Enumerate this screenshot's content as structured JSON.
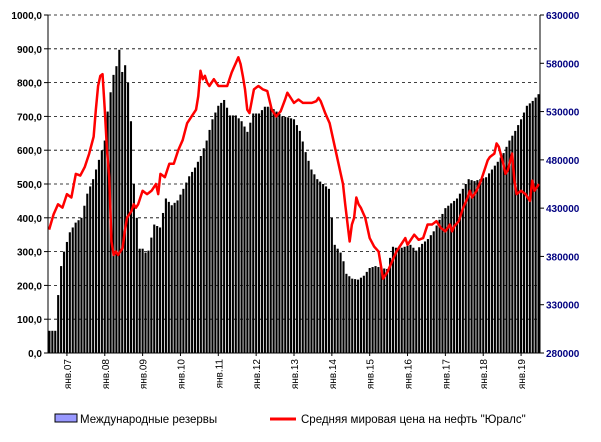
{
  "chart_data": {
    "type": "bar",
    "legend": {
      "placement": "bottom",
      "bars_label": "Международные резервы",
      "line_label": "Средняя мировая цена на нефть \"Юралс\""
    },
    "colors": {
      "bars_fill": "#000000",
      "bars_legend_fill": "#9999FF",
      "line": "#FF0000",
      "right_axis_text": "#000080",
      "gridline": "#000000"
    },
    "grid": "horizontal dashed",
    "x_tick_labels": [
      "янв.07",
      "янв.08",
      "янв.09",
      "янв.10",
      "янв.11",
      "янв.12",
      "янв.13",
      "янв.14",
      "янв.15",
      "янв.16",
      "янв.17",
      "янв.18",
      "янв.19"
    ],
    "y_left": {
      "ticks": [
        "0,0",
        "100,0",
        "200,0",
        "300,0",
        "400,0",
        "500,0",
        "600,0",
        "700,0",
        "800,0",
        "900,0",
        "1000,0"
      ],
      "ylim": [
        0,
        1000
      ]
    },
    "y_right": {
      "ticks": [
        "280000",
        "330000",
        "380000",
        "430000",
        "480000",
        "530000",
        "580000",
        "630000"
      ],
      "ylim": [
        280000,
        630000
      ]
    },
    "series": [
      {
        "axis": "right",
        "kind": "bar",
        "anchors": [
          [
            0,
            303000
          ],
          [
            2,
            303000
          ],
          [
            3,
            340000
          ],
          [
            4,
            370000
          ],
          [
            5,
            385000
          ],
          [
            7,
            405000
          ],
          [
            9,
            415000
          ],
          [
            11,
            420000
          ],
          [
            13,
            445000
          ],
          [
            15,
            460000
          ],
          [
            17,
            480000
          ],
          [
            19,
            500000
          ],
          [
            20,
            530000
          ],
          [
            21,
            550000
          ],
          [
            22,
            568000
          ],
          [
            23,
            577000
          ],
          [
            24,
            594000
          ],
          [
            25,
            571000
          ],
          [
            26,
            578000
          ],
          [
            27,
            560000
          ],
          [
            28,
            520000
          ],
          [
            29,
            455000
          ],
          [
            30,
            420000
          ],
          [
            31,
            388000
          ],
          [
            32,
            388000
          ],
          [
            33,
            384000
          ],
          [
            34,
            386000
          ],
          [
            36,
            413000
          ],
          [
            38,
            410000
          ],
          [
            40,
            440000
          ],
          [
            42,
            433000
          ],
          [
            44,
            438000
          ],
          [
            46,
            450000
          ],
          [
            48,
            463000
          ],
          [
            50,
            472000
          ],
          [
            52,
            484000
          ],
          [
            54,
            500000
          ],
          [
            56,
            522000
          ],
          [
            58,
            536000
          ],
          [
            60,
            542000
          ],
          [
            62,
            526000
          ],
          [
            64,
            526000
          ],
          [
            66,
            520000
          ],
          [
            68,
            509000
          ],
          [
            70,
            528000
          ],
          [
            72,
            528000
          ],
          [
            74,
            535000
          ],
          [
            76,
            535000
          ],
          [
            78,
            530000
          ],
          [
            80,
            525000
          ],
          [
            82,
            524000
          ],
          [
            84,
            522000
          ],
          [
            86,
            510000
          ],
          [
            88,
            488000
          ],
          [
            90,
            470000
          ],
          [
            92,
            460000
          ],
          [
            94,
            455000
          ],
          [
            96,
            450000
          ],
          [
            97,
            420000
          ],
          [
            98,
            392000
          ],
          [
            100,
            384000
          ],
          [
            101,
            375000
          ],
          [
            102,
            362000
          ],
          [
            104,
            357000
          ],
          [
            106,
            356000
          ],
          [
            108,
            360000
          ],
          [
            110,
            368000
          ],
          [
            112,
            370000
          ],
          [
            114,
            368000
          ],
          [
            116,
            367000
          ],
          [
            118,
            390000
          ],
          [
            120,
            388000
          ],
          [
            122,
            390000
          ],
          [
            124,
            392000
          ],
          [
            126,
            386000
          ],
          [
            128,
            393000
          ],
          [
            130,
            398000
          ],
          [
            132,
            406000
          ],
          [
            134,
            418000
          ],
          [
            136,
            430000
          ],
          [
            138,
            435000
          ],
          [
            140,
            440000
          ],
          [
            142,
            450000
          ],
          [
            144,
            460000
          ],
          [
            146,
            458000
          ],
          [
            148,
            460000
          ],
          [
            150,
            462000
          ],
          [
            152,
            470000
          ],
          [
            154,
            478000
          ],
          [
            156,
            487000
          ],
          [
            158,
            500000
          ],
          [
            160,
            510000
          ],
          [
            162,
            522000
          ],
          [
            164,
            536000
          ],
          [
            166,
            541000
          ],
          [
            168,
            548000
          ]
        ]
      },
      {
        "axis": "left",
        "kind": "line",
        "anchors": [
          [
            0,
            365
          ],
          [
            2,
            410
          ],
          [
            4,
            440
          ],
          [
            6,
            430
          ],
          [
            8,
            470
          ],
          [
            10,
            460
          ],
          [
            12,
            530
          ],
          [
            14,
            525
          ],
          [
            16,
            550
          ],
          [
            18,
            590
          ],
          [
            20,
            640
          ],
          [
            21,
            720
          ],
          [
            22,
            790
          ],
          [
            23,
            820
          ],
          [
            24,
            825
          ],
          [
            25,
            720
          ],
          [
            26,
            600
          ],
          [
            27,
            520
          ],
          [
            28,
            330
          ],
          [
            29,
            290
          ],
          [
            30,
            300
          ],
          [
            31,
            290
          ],
          [
            32,
            300
          ],
          [
            33,
            310
          ],
          [
            34,
            360
          ],
          [
            35,
            400
          ],
          [
            36,
            410
          ],
          [
            37,
            420
          ],
          [
            38,
            440
          ],
          [
            39,
            430
          ],
          [
            40,
            440
          ],
          [
            42,
            480
          ],
          [
            44,
            470
          ],
          [
            46,
            480
          ],
          [
            48,
            500
          ],
          [
            49,
            470
          ],
          [
            50,
            530
          ],
          [
            52,
            520
          ],
          [
            54,
            560
          ],
          [
            56,
            560
          ],
          [
            58,
            600
          ],
          [
            60,
            630
          ],
          [
            62,
            680
          ],
          [
            64,
            700
          ],
          [
            66,
            720
          ],
          [
            67,
            760
          ],
          [
            68,
            835
          ],
          [
            69,
            810
          ],
          [
            70,
            820
          ],
          [
            71,
            800
          ],
          [
            72,
            790
          ],
          [
            74,
            810
          ],
          [
            76,
            790
          ],
          [
            78,
            790
          ],
          [
            80,
            790
          ],
          [
            82,
            830
          ],
          [
            84,
            860
          ],
          [
            85,
            875
          ],
          [
            86,
            855
          ],
          [
            87,
            820
          ],
          [
            88,
            780
          ],
          [
            89,
            720
          ],
          [
            90,
            710
          ],
          [
            92,
            780
          ],
          [
            94,
            790
          ],
          [
            96,
            780
          ],
          [
            98,
            775
          ],
          [
            100,
            720
          ],
          [
            102,
            700
          ],
          [
            104,
            715
          ],
          [
            106,
            750
          ],
          [
            107,
            770
          ],
          [
            108,
            760
          ],
          [
            110,
            740
          ],
          [
            112,
            750
          ],
          [
            114,
            740
          ],
          [
            116,
            740
          ],
          [
            118,
            740
          ],
          [
            120,
            745
          ],
          [
            121,
            755
          ],
          [
            122,
            745
          ],
          [
            124,
            710
          ],
          [
            126,
            680
          ],
          [
            128,
            620
          ],
          [
            130,
            560
          ],
          [
            132,
            500
          ],
          [
            133,
            440
          ],
          [
            134,
            385
          ],
          [
            135,
            330
          ],
          [
            136,
            380
          ],
          [
            137,
            400
          ],
          [
            138,
            460
          ],
          [
            139,
            440
          ],
          [
            140,
            430
          ],
          [
            142,
            400
          ],
          [
            144,
            340
          ],
          [
            146,
            315
          ],
          [
            148,
            300
          ],
          [
            149,
            260
          ],
          [
            150,
            220
          ],
          [
            152,
            240
          ],
          [
            154,
            270
          ],
          [
            156,
            300
          ],
          [
            158,
            320
          ],
          [
            160,
            340
          ],
          [
            161,
            320
          ],
          [
            162,
            330
          ],
          [
            164,
            350
          ],
          [
            166,
            335
          ],
          [
            168,
            340
          ],
          [
            170,
            380
          ],
          [
            172,
            380
          ],
          [
            174,
            390
          ],
          [
            176,
            370
          ],
          [
            178,
            360
          ],
          [
            180,
            380
          ],
          [
            181,
            360
          ],
          [
            182,
            375
          ],
          [
            184,
            390
          ],
          [
            186,
            430
          ],
          [
            188,
            460
          ],
          [
            189,
            480
          ],
          [
            190,
            460
          ],
          [
            192,
            480
          ],
          [
            194,
            510
          ],
          [
            196,
            550
          ],
          [
            197,
            570
          ],
          [
            198,
            580
          ],
          [
            200,
            590
          ],
          [
            201,
            620
          ],
          [
            202,
            610
          ],
          [
            204,
            560
          ],
          [
            205,
            530
          ],
          [
            206,
            540
          ],
          [
            208,
            590
          ],
          [
            209,
            510
          ],
          [
            210,
            470
          ],
          [
            212,
            480
          ],
          [
            214,
            470
          ],
          [
            216,
            450
          ],
          [
            217,
            510
          ],
          [
            218,
            480
          ],
          [
            220,
            500
          ]
        ]
      }
    ]
  }
}
